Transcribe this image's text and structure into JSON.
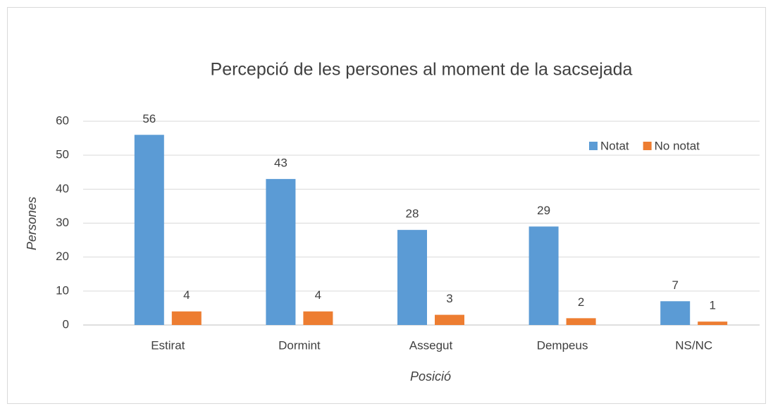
{
  "chart_data": {
    "type": "bar",
    "title": "Percepció de les persones al moment de la sacsejada",
    "x_label": "Posició",
    "y_label": "Persones",
    "categories": [
      "Estirat",
      "Dormint",
      "Assegut",
      "Dempeus",
      "NS/NC"
    ],
    "series": [
      {
        "name": "Notat",
        "color": "#5b9bd5",
        "values": [
          56,
          43,
          28,
          29,
          7
        ]
      },
      {
        "name": "No notat",
        "color": "#ed7d31",
        "values": [
          4,
          4,
          3,
          2,
          1
        ]
      }
    ],
    "ylim": [
      0,
      60
    ],
    "yticks": [
      0,
      10,
      20,
      30,
      40,
      50,
      60
    ],
    "grid": true,
    "legend": "top-right"
  }
}
